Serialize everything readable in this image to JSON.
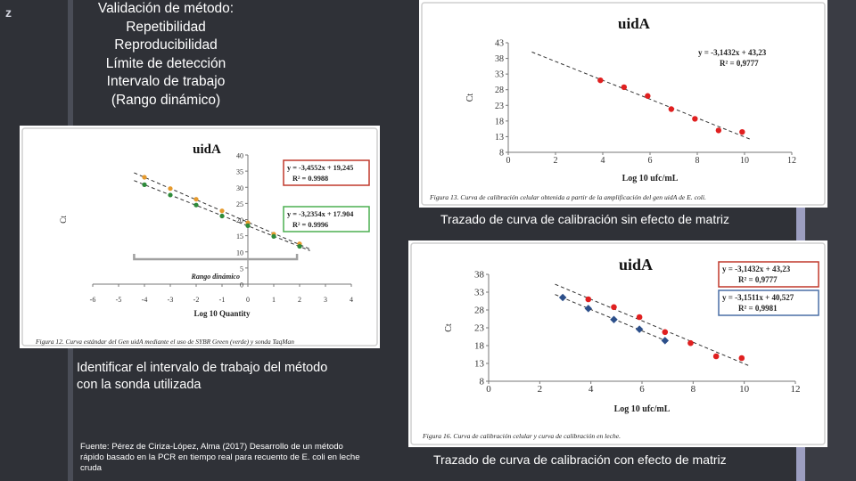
{
  "logo": {
    "text": "z"
  },
  "methods": {
    "lines": [
      "Validación de método:",
      "Repetibilidad",
      "Reproducibilidad",
      "Límite de detección",
      "Intervalo de trabajo",
      "(Rango dinámico)"
    ]
  },
  "identify_text": "Identificar el intervalo de trabajo del método con la sonda utilizada",
  "source_text": "Fuente: Pérez de Ciriza-López, Alma (2017) Desarrollo de un método rápido basado en la PCR en tiempo real para recuento de E. coli en leche cruda",
  "caption_no_matrix": "Trazado de curva de calibración sin efecto de matriz",
  "caption_matrix": "Trazado de curva de calibración con efecto de matriz",
  "colors": {
    "red": "#e02020",
    "green": "#2e8b3a",
    "blue": "#2c4f8a",
    "orange": "#e59a2e",
    "box_red": "#c0392b",
    "box_green": "#4caf50",
    "box_blue": "#4a6fa5",
    "bracket": "#a0a0a0"
  },
  "chart_data": [
    {
      "type": "scatter",
      "title": "uidA",
      "xlabel": "Log 10 Quantity",
      "ylabel": "Ct",
      "xlim": [
        -6,
        4
      ],
      "ylim": [
        0,
        40
      ],
      "xticks": [
        "-6",
        "-5",
        "-4",
        "-3",
        "-2",
        "-1",
        "0",
        "1",
        "2",
        "3",
        "4"
      ],
      "yticks": [
        "0",
        "5",
        "10",
        "15",
        "20",
        "25",
        "30",
        "35",
        "40"
      ],
      "series": [
        {
          "color": "orange",
          "x": [
            -4,
            -3,
            -2,
            -1,
            0,
            1,
            2
          ],
          "y": [
            33.1,
            29.6,
            26.3,
            22.7,
            19.0,
            15.5,
            12.5
          ],
          "equation": "y = -3,4552x + 19,245",
          "r2": "R² = 0.9988",
          "box": "box_red"
        },
        {
          "color": "green",
          "x": [
            -4,
            -3,
            -2,
            -1,
            0,
            1,
            2
          ],
          "y": [
            30.8,
            27.6,
            24.5,
            21.1,
            18.1,
            14.8,
            11.7
          ],
          "equation": "y = -3,2354x + 17.904",
          "r2": "R² = 0.9996",
          "box": "box_green"
        }
      ],
      "annotation": "Rango dinámico",
      "caption": "Figura 12. Curva estándar del Gen uidA mediante el uso de SYBR Green (verde) y sonda TaqMan"
    },
    {
      "type": "scatter",
      "title": "uidA",
      "xlabel": "Log 10  ufc/mL",
      "ylabel": "Ct",
      "xlim": [
        0,
        12
      ],
      "ylim": [
        8,
        43
      ],
      "xticks": [
        "0",
        "2",
        "4",
        "6",
        "8",
        "10",
        "12"
      ],
      "yticks": [
        "8",
        "13",
        "18",
        "23",
        "28",
        "33",
        "38",
        "43"
      ],
      "series": [
        {
          "color": "red",
          "x": [
            3.9,
            4.9,
            5.9,
            6.9,
            7.9,
            8.9,
            9.9
          ],
          "y": [
            31.0,
            28.8,
            26.0,
            21.8,
            18.7,
            15.0,
            14.5
          ],
          "equation": "y = -3,1432x + 43,23",
          "r2": "R² = 0,9777"
        }
      ],
      "caption": "Figura 13. Curva de calibración celular obtenida a partir de la amplificación del gen uidA de E. coli."
    },
    {
      "type": "scatter",
      "title": "uidA",
      "xlabel": "Log 10  ufc/mL",
      "ylabel": "Ct",
      "xlim": [
        0,
        12
      ],
      "ylim": [
        8,
        38
      ],
      "xticks": [
        "0",
        "2",
        "4",
        "6",
        "8",
        "10",
        "12"
      ],
      "yticks": [
        "8",
        "13",
        "18",
        "23",
        "28",
        "33",
        "38"
      ],
      "series": [
        {
          "color": "red",
          "x": [
            3.9,
            4.9,
            5.9,
            6.9,
            7.9,
            8.9,
            9.9
          ],
          "y": [
            31.0,
            28.8,
            26.0,
            21.8,
            18.7,
            15.0,
            14.5
          ],
          "equation": "y = -3,1432x + 43,23",
          "r2": "R² = 0,9777",
          "box": "box_red"
        },
        {
          "color": "blue",
          "x": [
            2.9,
            3.9,
            4.9,
            5.9,
            6.9
          ],
          "y": [
            31.5,
            28.4,
            25.3,
            22.6,
            19.4
          ],
          "equation": "y = -3,1511x + 40,527",
          "r2": "R² = 0,9981",
          "box": "box_blue"
        }
      ],
      "caption": "Figura 16. Curva de calibración celular y curva de calibración en leche."
    }
  ]
}
